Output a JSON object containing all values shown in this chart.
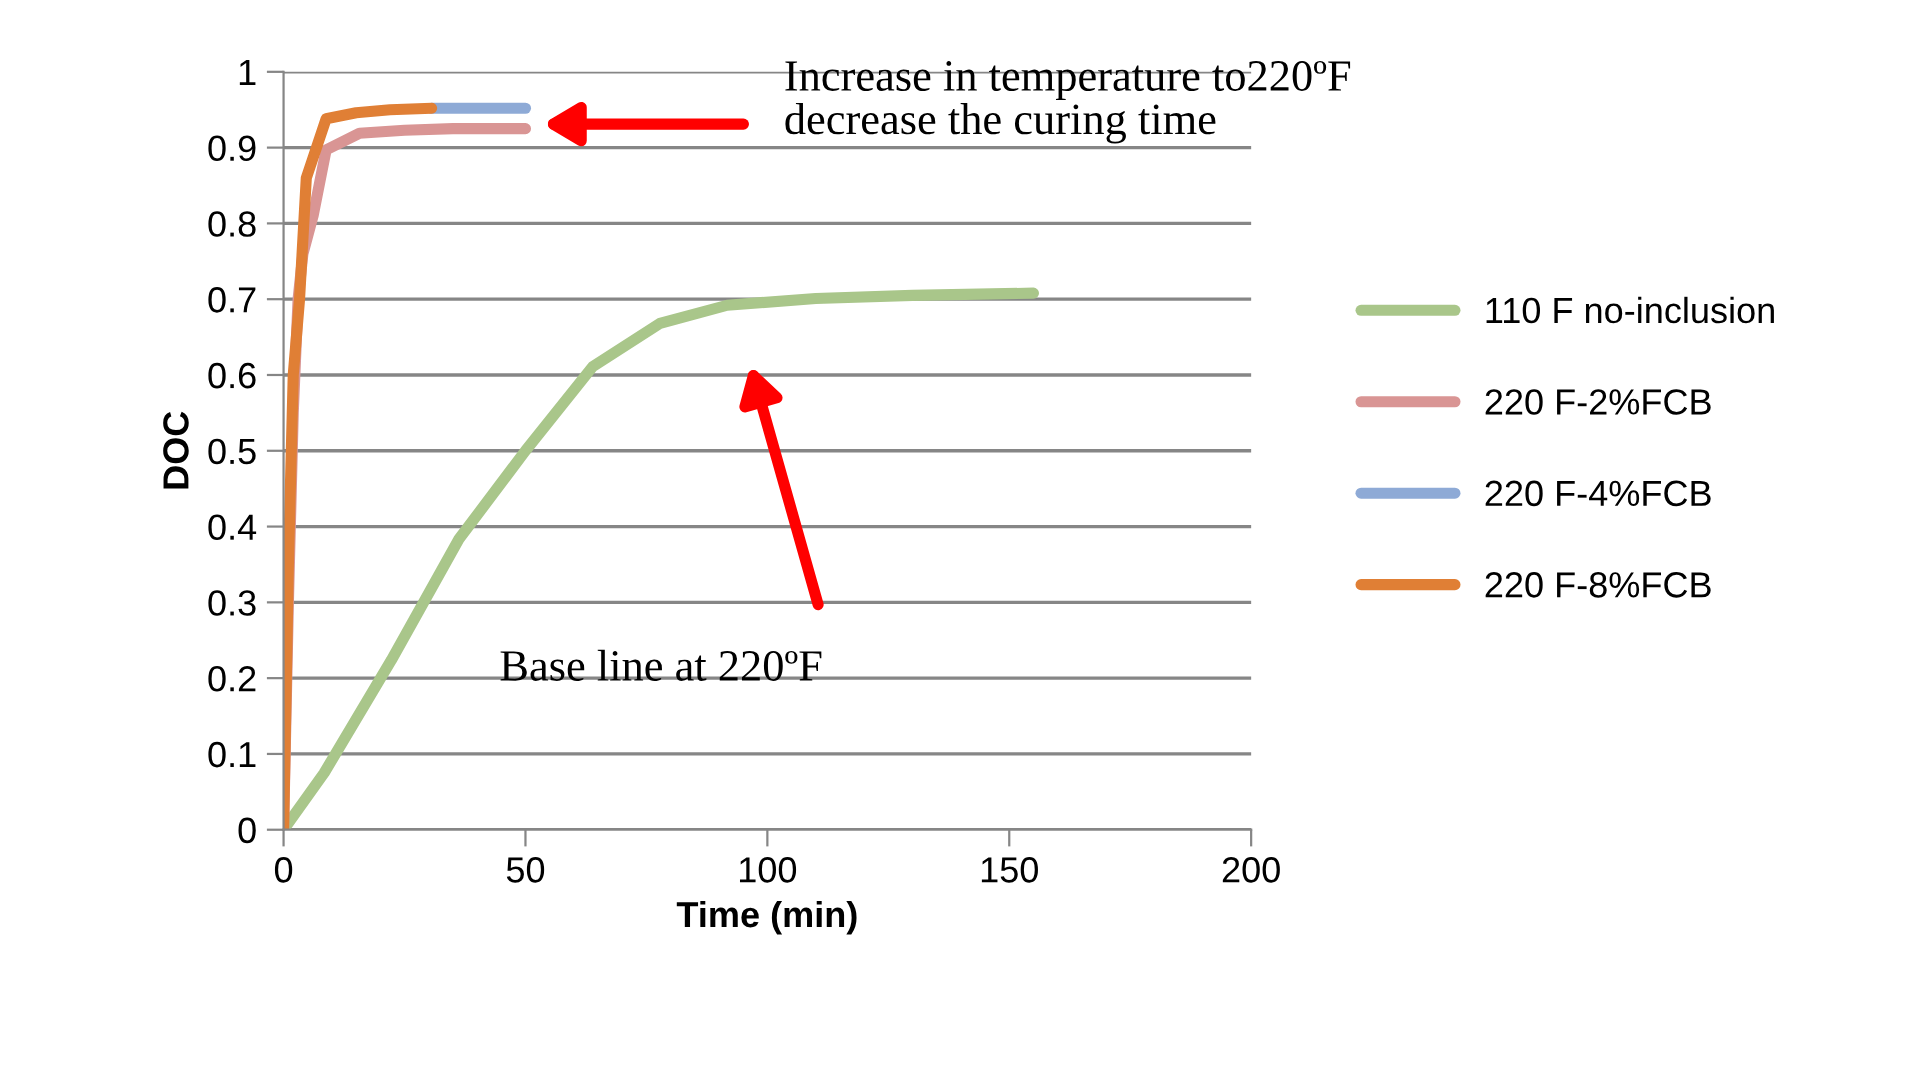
{
  "chart_data": {
    "type": "line",
    "xlabel": "Time (min)",
    "ylabel": "DOC",
    "xlim": [
      0,
      200
    ],
    "xticks": [
      0,
      50,
      100,
      150,
      200
    ],
    "ylim": [
      0,
      1
    ],
    "yticks": [
      0,
      0.1,
      0.2,
      0.3,
      0.4,
      0.5,
      0.6,
      0.7,
      0.8,
      0.9,
      1
    ],
    "grid": "y",
    "legend": "right",
    "marker": "none",
    "line_style": "solid",
    "series": [
      {
        "name": "110 F no-inclusion",
        "color": "#a9c68a",
        "x": [
          0,
          8.4,
          22.3,
          36.2,
          50,
          63.9,
          77.8,
          91.7,
          110,
          130,
          155
        ],
        "values": [
          0,
          0.075,
          0.224,
          0.383,
          0.5,
          0.611,
          0.668,
          0.692,
          0.701,
          0.705,
          0.708
        ]
      },
      {
        "name": "220 F-2%FCB",
        "color": "#d99594",
        "x": [
          0,
          1,
          2,
          3,
          4,
          6.1,
          8.8,
          15.7,
          25,
          35,
          50
        ],
        "values": [
          0,
          0.3,
          0.55,
          0.7,
          0.76,
          0.81,
          0.897,
          0.919,
          0.923,
          0.925,
          0.925
        ]
      },
      {
        "name": "220 F-4%FCB",
        "color": "#8eaad6",
        "x": [
          30.6,
          40,
          50
        ],
        "values": [
          0.952,
          0.952,
          0.952
        ]
      },
      {
        "name": "220 F-8%FCB",
        "color": "#e07f35",
        "x": [
          0,
          1,
          2,
          3.3,
          4.7,
          8.8,
          15,
          22,
          30.6
        ],
        "values": [
          0,
          0.35,
          0.6,
          0.7,
          0.86,
          0.938,
          0.946,
          0.95,
          0.952
        ]
      }
    ],
    "annotations": [
      "Increase in temperature to220ºF\ndecrease the curing time",
      "Base line at 220ºF"
    ]
  }
}
